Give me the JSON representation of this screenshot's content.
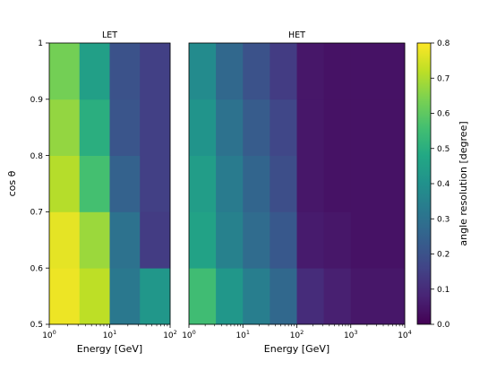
{
  "chart_data": {
    "type": "heatmap",
    "ylabel": "cos θ",
    "y_ticks": [
      {
        "value": 0.5,
        "label": "0.5"
      },
      {
        "value": 0.6,
        "label": "0.6"
      },
      {
        "value": 0.7,
        "label": "0.7"
      },
      {
        "value": 0.8,
        "label": "0.8"
      },
      {
        "value": 0.9,
        "label": "0.9"
      },
      {
        "value": 1.0,
        "label": "1"
      }
    ],
    "ylim": [
      0.5,
      1.0
    ],
    "y_bins": [
      [
        0.5,
        0.6
      ],
      [
        0.6,
        0.7
      ],
      [
        0.7,
        0.8
      ],
      [
        0.8,
        0.9
      ],
      [
        0.9,
        1.0
      ]
    ],
    "colorbar": {
      "label": "angle resolution [degree]",
      "range": [
        0.0,
        0.8
      ],
      "colormap": "viridis",
      "ticks": [
        {
          "value": 0.0,
          "label": "0.0"
        },
        {
          "value": 0.1,
          "label": "0.1"
        },
        {
          "value": 0.2,
          "label": "0.2"
        },
        {
          "value": 0.3,
          "label": "0.3"
        },
        {
          "value": 0.4,
          "label": "0.4"
        },
        {
          "value": 0.5,
          "label": "0.5"
        },
        {
          "value": 0.6,
          "label": "0.6"
        },
        {
          "value": 0.7,
          "label": "0.7"
        },
        {
          "value": 0.8,
          "label": "0.8"
        }
      ]
    },
    "panels": [
      {
        "title": "LET",
        "xlabel": "Energy [GeV]",
        "x_scale": "log",
        "xlim": [
          1,
          100
        ],
        "x_ticks": [
          {
            "value": 1,
            "base": "10",
            "exp": "0"
          },
          {
            "value": 10,
            "base": "10",
            "exp": "1"
          },
          {
            "value": 100,
            "base": "10",
            "exp": "2"
          }
        ],
        "x_bins": [
          1,
          3.16,
          10,
          31.6,
          100
        ],
        "values": [
          [
            0.78,
            0.72,
            0.32,
            0.42
          ],
          [
            0.77,
            0.68,
            0.3,
            0.14
          ],
          [
            0.71,
            0.56,
            0.25,
            0.15
          ],
          [
            0.67,
            0.5,
            0.21,
            0.15
          ],
          [
            0.63,
            0.45,
            0.2,
            0.15
          ]
        ]
      },
      {
        "title": "HET",
        "xlabel": "Energy [GeV]",
        "x_scale": "log",
        "xlim": [
          1,
          10000
        ],
        "x_ticks": [
          {
            "value": 1,
            "base": "10",
            "exp": "0"
          },
          {
            "value": 10,
            "base": "10",
            "exp": "1"
          },
          {
            "value": 100,
            "base": "10",
            "exp": "2"
          },
          {
            "value": 1000,
            "base": "10",
            "exp": "3"
          },
          {
            "value": 10000,
            "base": "10",
            "exp": "4"
          }
        ],
        "x_bins": [
          1,
          3.16,
          10,
          31.6,
          100,
          316,
          1000,
          10000
        ],
        "values": [
          [
            0.55,
            0.42,
            0.34,
            0.27,
            0.1,
            0.07,
            0.05
          ],
          [
            0.46,
            0.35,
            0.28,
            0.22,
            0.06,
            0.05,
            0.04
          ],
          [
            0.44,
            0.33,
            0.26,
            0.19,
            0.05,
            0.04,
            0.04
          ],
          [
            0.41,
            0.3,
            0.23,
            0.17,
            0.05,
            0.04,
            0.04
          ],
          [
            0.38,
            0.27,
            0.2,
            0.14,
            0.05,
            0.04,
            0.04
          ]
        ]
      }
    ]
  }
}
